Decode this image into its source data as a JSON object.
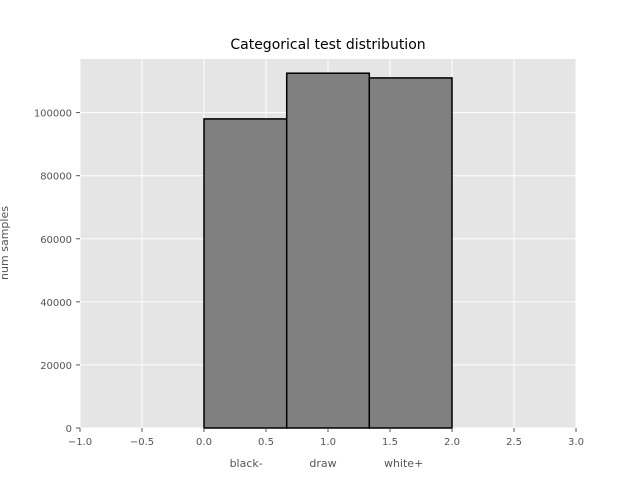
{
  "chart_data": {
    "type": "bar",
    "title": "Categorical test distribution",
    "xlabel": "",
    "ylabel": "num samples",
    "xlim": [
      -1.0,
      3.0
    ],
    "ylim": [
      0,
      117000
    ],
    "grid": true,
    "x_ticks": [
      -1.0,
      -0.5,
      0.0,
      0.5,
      1.0,
      1.5,
      2.0,
      2.5,
      3.0
    ],
    "x_tick_labels": [
      "−1.0",
      "−0.5",
      "0.0",
      "0.5",
      "1.0",
      "1.5",
      "2.0",
      "2.5",
      "3.0"
    ],
    "y_ticks": [
      0,
      20000,
      40000,
      60000,
      80000,
      100000
    ],
    "y_tick_labels": [
      "0",
      "20000",
      "40000",
      "60000",
      "80000",
      "100000"
    ],
    "bars": [
      {
        "x_start": 0.0,
        "x_end": 0.667,
        "value": 98000
      },
      {
        "x_start": 0.667,
        "x_end": 1.333,
        "value": 112500
      },
      {
        "x_start": 1.333,
        "x_end": 2.0,
        "value": 111000
      }
    ],
    "category_labels": [
      {
        "text": "black-",
        "x": 0.34
      },
      {
        "text": "draw",
        "x": 0.96
      },
      {
        "text": "white+",
        "x": 1.61
      }
    ],
    "colors": {
      "background": "#e5e5e5",
      "grid": "#ffffff",
      "bar_fill": "#808080",
      "bar_edge": "#000000"
    }
  }
}
